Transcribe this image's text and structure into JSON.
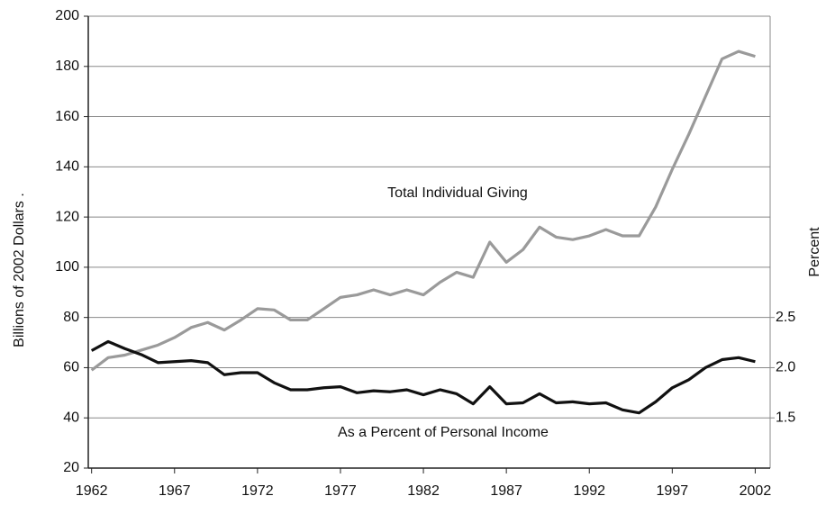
{
  "chart_data": {
    "type": "line",
    "x": [
      1962,
      1963,
      1964,
      1965,
      1966,
      1967,
      1968,
      1969,
      1970,
      1971,
      1972,
      1973,
      1974,
      1975,
      1976,
      1977,
      1978,
      1979,
      1980,
      1981,
      1982,
      1983,
      1984,
      1985,
      1986,
      1987,
      1988,
      1989,
      1990,
      1991,
      1992,
      1993,
      1994,
      1995,
      1996,
      1997,
      1998,
      1999,
      2000,
      2001,
      2002
    ],
    "series": [
      {
        "name": "Total Individual Giving",
        "color": "#9a9a9a",
        "values": [
          59,
          64,
          65,
          67,
          69,
          72,
          76,
          78,
          75,
          79,
          83.5,
          83,
          79,
          79,
          83.5,
          88,
          89,
          91,
          89,
          91,
          89,
          94,
          98,
          96,
          110,
          102,
          107,
          116,
          112,
          111,
          112.5,
          115,
          112.5,
          112.5,
          124,
          139,
          153,
          168,
          183,
          186,
          184
        ]
      },
      {
        "name": "As a Percent of Personal Income",
        "color": "#111111",
        "axis": "y2",
        "values": [
          2.17,
          2.26,
          2.19,
          2.13,
          2.05,
          2.06,
          2.07,
          2.05,
          1.93,
          1.95,
          1.95,
          1.85,
          1.78,
          1.78,
          1.8,
          1.81,
          1.75,
          1.77,
          1.76,
          1.78,
          1.73,
          1.78,
          1.74,
          1.64,
          1.81,
          1.64,
          1.65,
          1.74,
          1.65,
          1.66,
          1.64,
          1.65,
          1.58,
          1.55,
          1.66,
          1.8,
          1.88,
          2.0,
          2.08,
          2.1,
          2.06
        ]
      }
    ],
    "ylabel": "Billions of 2002 Dollars .",
    "y2label": "Percent",
    "xlim": [
      1961.8,
      2002.9
    ],
    "xticks": [
      1962,
      1967,
      1972,
      1977,
      1982,
      1987,
      1992,
      1997,
      2002
    ],
    "ylim": [
      20,
      200
    ],
    "yticks": [
      20,
      40,
      60,
      80,
      100,
      120,
      140,
      160,
      180,
      200
    ],
    "y2lim": [
      1.0,
      5.5
    ],
    "y2ticks": [
      {
        "value": 1.5,
        "label": "1.5"
      },
      {
        "value": 2.0,
        "label": "2.0"
      },
      {
        "value": 2.5,
        "label": "2.5"
      }
    ],
    "grid": true
  }
}
